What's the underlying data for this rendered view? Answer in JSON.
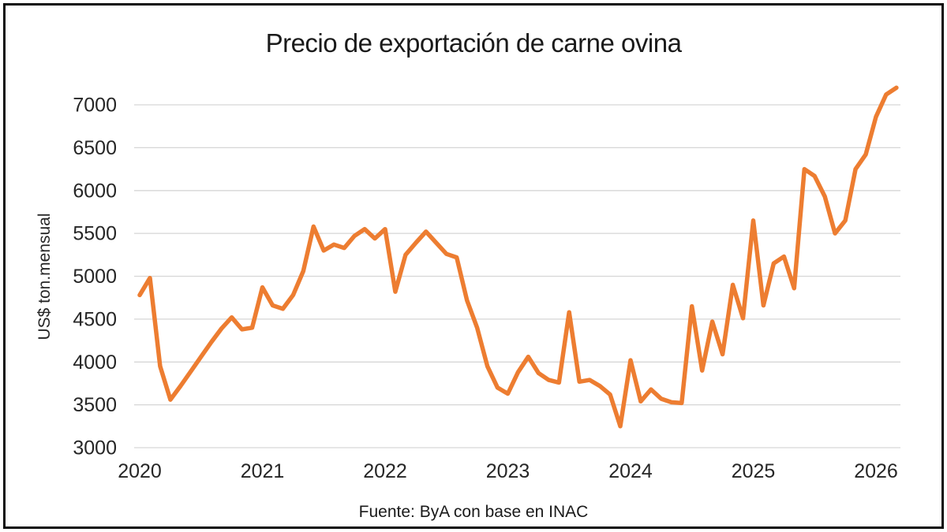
{
  "title": "Precio de exportación de carne ovina",
  "source_caption": "Fuente: ByA con base en INAC",
  "colors": {
    "line": "#ED7D31",
    "gridline": "#D6D6D6",
    "axis_text": "#262626",
    "title_text": "#1A1A1A",
    "border": "#0D0D0D",
    "background": "#FFFFFF"
  },
  "chart_data": {
    "type": "line",
    "title": "Precio de exportación de carne ovina",
    "xlabel": "",
    "ylabel": "US$ ton.mensual",
    "x_tick_labels": [
      "2020",
      "2021",
      "2022",
      "2023",
      "2024",
      "2025",
      "2026"
    ],
    "y_ticks": [
      3000,
      3500,
      4000,
      4500,
      5000,
      5500,
      6000,
      6500,
      7000
    ],
    "ylim": [
      3000,
      7300
    ],
    "grid": true,
    "legend": "none",
    "frequency": "monthly",
    "x_start": "2020-01",
    "x_end": "2026-03",
    "series": [
      {
        "name": "Precio de exportación de carne ovina (US$ por tonelada, mensual)",
        "color": "#ED7D31",
        "values": [
          4780,
          4980,
          3950,
          3560,
          3720,
          3890,
          4060,
          4230,
          4390,
          4520,
          4380,
          4400,
          4870,
          4660,
          4620,
          4780,
          5060,
          5580,
          5300,
          5370,
          5330,
          5470,
          5550,
          5440,
          5550,
          4820,
          5250,
          5390,
          5520,
          5390,
          5260,
          5220,
          4720,
          4400,
          3950,
          3700,
          3630,
          3880,
          4060,
          3870,
          3790,
          3760,
          4580,
          3770,
          3790,
          3720,
          3620,
          3250,
          4020,
          3540,
          3680,
          3570,
          3530,
          3520,
          4650,
          3900,
          4470,
          4090,
          4900,
          4510,
          5650,
          4660,
          5150,
          5230,
          4860,
          6250,
          6170,
          5930,
          5500,
          5650,
          6250,
          6420,
          6860,
          7120,
          7200
        ]
      }
    ]
  }
}
